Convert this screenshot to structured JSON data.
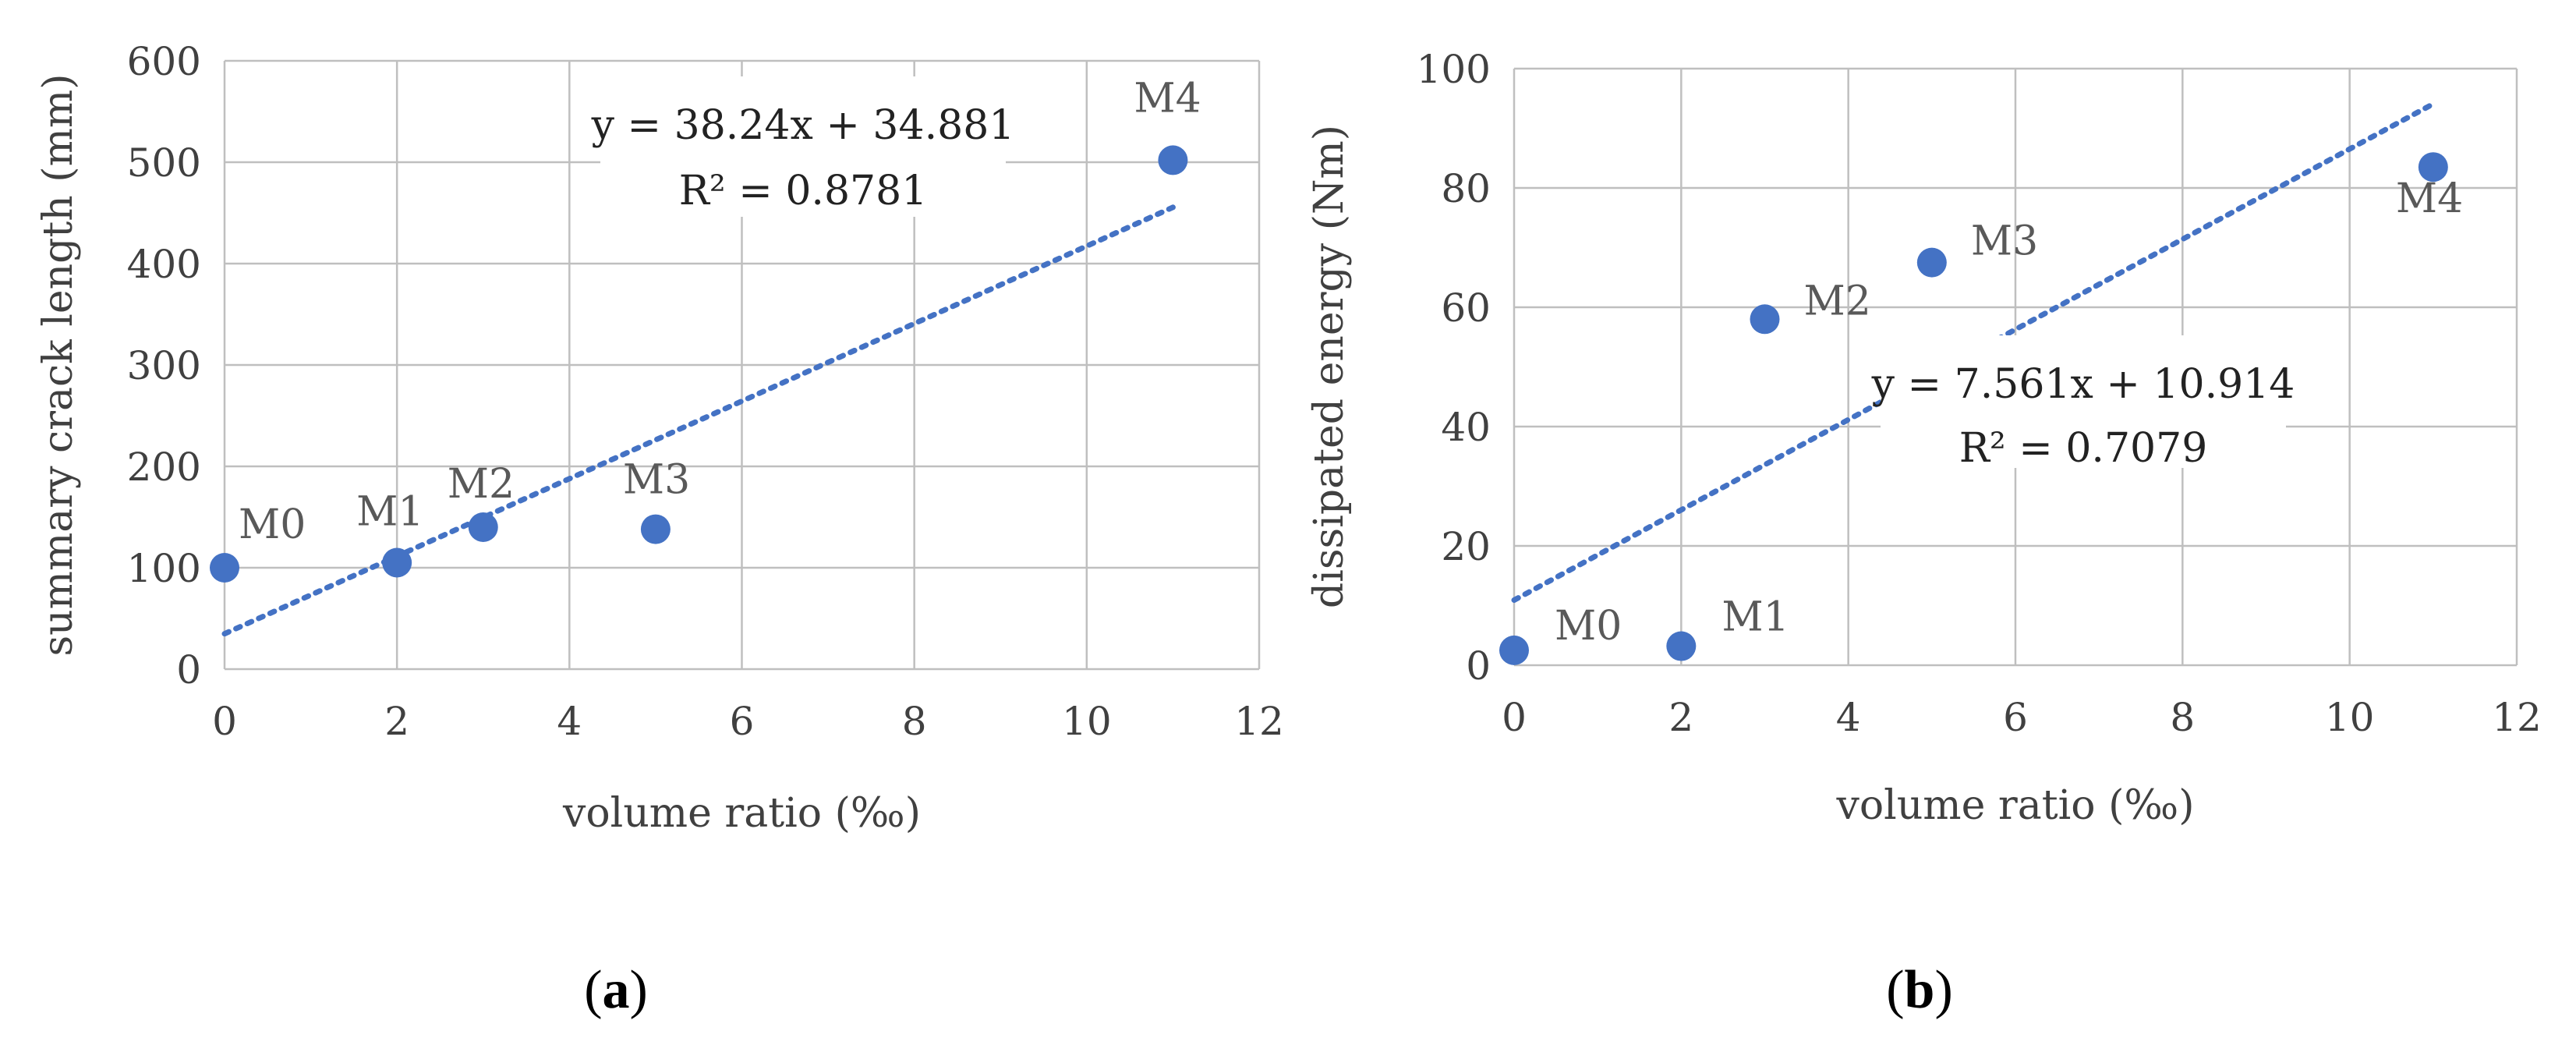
{
  "colors": {
    "point": "#4472C4",
    "trend": "#4472C4",
    "grid": "#BFBFBF",
    "text": "#404040"
  },
  "chart_data": [
    {
      "type": "scatter",
      "panel_label": "a",
      "xlabel": "volume ratio (‰)",
      "ylabel": "summary crack length (mm)",
      "xlim": [
        0,
        12
      ],
      "ylim": [
        0,
        600
      ],
      "xticks": [
        0,
        2,
        4,
        6,
        8,
        10,
        12
      ],
      "yticks": [
        0,
        100,
        200,
        300,
        400,
        500,
        600
      ],
      "grid": true,
      "points": [
        {
          "label": "M0",
          "x": 0,
          "y": 100
        },
        {
          "label": "M1",
          "x": 2,
          "y": 105
        },
        {
          "label": "M2",
          "x": 3,
          "y": 140
        },
        {
          "label": "M3",
          "x": 5,
          "y": 138
        },
        {
          "label": "M4",
          "x": 11,
          "y": 502
        }
      ],
      "trendline": {
        "type": "linear",
        "slope": 38.24,
        "intercept": 34.881,
        "x_range": [
          0,
          11
        ],
        "equation": "y = 38.24x + 34.881",
        "r2": "R² = 0.8781"
      }
    },
    {
      "type": "scatter",
      "panel_label": "b",
      "xlabel": "volume ratio (‰)",
      "ylabel": "dissipated energy (Nm)",
      "xlim": [
        0,
        12
      ],
      "ylim": [
        0,
        100
      ],
      "xticks": [
        0,
        2,
        4,
        6,
        8,
        10,
        12
      ],
      "yticks": [
        0,
        20,
        40,
        60,
        80,
        100
      ],
      "grid": true,
      "points": [
        {
          "label": "M0",
          "x": 0,
          "y": 2.5
        },
        {
          "label": "M1",
          "x": 2,
          "y": 3.2
        },
        {
          "label": "M2",
          "x": 3,
          "y": 58
        },
        {
          "label": "M3",
          "x": 5,
          "y": 67.5
        },
        {
          "label": "M4",
          "x": 11,
          "y": 83.5
        }
      ],
      "trendline": {
        "type": "linear",
        "slope": 7.561,
        "intercept": 10.914,
        "x_range": [
          0,
          11
        ],
        "equation": "y = 7.561x + 10.914",
        "r2": "R² = 0.7079"
      }
    }
  ]
}
